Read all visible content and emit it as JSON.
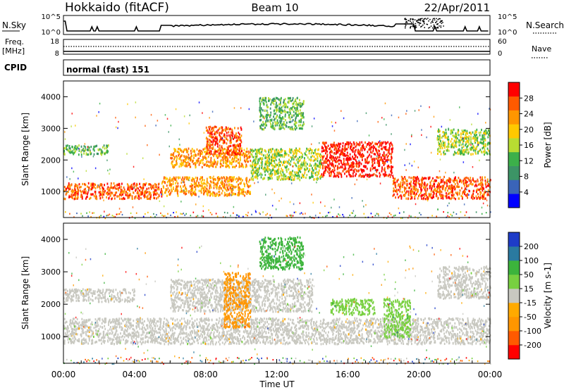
{
  "header": {
    "title": "Hokkaido (fitACF)",
    "beam": "Beam 10",
    "date": "22/Apr/2011"
  },
  "status_panel": {
    "nsky_label": "N.Sky",
    "nsky_ticks": [
      "10^5",
      "10^0"
    ],
    "nsearch_label": "N.Search",
    "freq_label": "Freq.",
    "freq_unit": "[MHz]",
    "freq_ticks": [
      "18",
      "8"
    ],
    "nave_ticks": [
      "60",
      "0"
    ],
    "nave_label": "Nave",
    "cpid_label": "CPID",
    "cpid_value": "normal (fast) 151"
  },
  "colors": {
    "power_scale": [
      "#0000ff",
      "#3a64b8",
      "#3c9466",
      "#3cb04a",
      "#b8dc32",
      "#ffc800",
      "#ff9600",
      "#ff5a00",
      "#ff0000"
    ],
    "velocity_scale": [
      "#ff0000",
      "#ff5a00",
      "#ff9600",
      "#ffaa00",
      "#c8c8c0",
      "#78d040",
      "#3cb43c",
      "#2a7aa0",
      "#1e3cc8"
    ],
    "ground_scatter": "#c0c0b8"
  },
  "chart_data": [
    {
      "type": "heatmap",
      "name": "power",
      "ylabel": "Slant Range [km]",
      "colorbar_label": "Power [dB]",
      "colorbar_ticks": [
        "28",
        "24",
        "20",
        "16",
        "12",
        "8",
        "4"
      ],
      "y_ticks": [
        "4000",
        "3000",
        "2000",
        "1000"
      ],
      "ylim": [
        180,
        4500
      ],
      "xlim": [
        "00:00",
        "24:00"
      ],
      "regions": [
        {
          "t0": 0.0,
          "t1": 5.5,
          "r0": 800,
          "r1": 1300,
          "level": 7
        },
        {
          "t0": 5.5,
          "t1": 10.5,
          "r0": 900,
          "r1": 1500,
          "level": 6
        },
        {
          "t0": 6.0,
          "t1": 10.5,
          "r0": 1800,
          "r1": 2400,
          "level": 6
        },
        {
          "t0": 8.0,
          "t1": 10.0,
          "r0": 2200,
          "r1": 3100,
          "level": 7
        },
        {
          "t0": 10.5,
          "t1": 14.5,
          "r0": 1400,
          "r1": 2400,
          "level": 4
        },
        {
          "t0": 14.5,
          "t1": 18.5,
          "r0": 1500,
          "r1": 2600,
          "level": 8
        },
        {
          "t0": 18.5,
          "t1": 24.0,
          "r0": 800,
          "r1": 1500,
          "level": 7
        },
        {
          "t0": 0.0,
          "t1": 2.5,
          "r0": 2200,
          "r1": 2500,
          "level": 3
        },
        {
          "t0": 21.0,
          "t1": 24.0,
          "r0": 2200,
          "r1": 3000,
          "level": 4
        },
        {
          "t0": 11.0,
          "t1": 13.5,
          "r0": 3000,
          "r1": 4000,
          "level": 3
        }
      ]
    },
    {
      "type": "heatmap",
      "name": "velocity",
      "ylabel": "Slant Range [km]",
      "colorbar_label": "Velocity [m s-1]",
      "colorbar_ticks": [
        "200",
        "100",
        "50",
        "15",
        "-15",
        "-50",
        "-100",
        "-200"
      ],
      "y_ticks": [
        "4000",
        "3000",
        "2000",
        "1000"
      ],
      "ylim": [
        180,
        4500
      ],
      "xlim": [
        "00:00",
        "24:00"
      ],
      "xlabel": "Time UT",
      "x_ticks": [
        "00:00",
        "04:00",
        "08:00",
        "12:00",
        "16:00",
        "20:00",
        "00:00"
      ],
      "regions": [
        {
          "t0": 0.0,
          "t1": 24.0,
          "r0": 800,
          "r1": 1600,
          "level": 4
        },
        {
          "t0": 0.0,
          "t1": 4.0,
          "r0": 2100,
          "r1": 2500,
          "level": 4
        },
        {
          "t0": 6.0,
          "t1": 14.0,
          "r0": 1800,
          "r1": 2800,
          "level": 4
        },
        {
          "t0": 15.0,
          "t1": 17.5,
          "r0": 1700,
          "r1": 2200,
          "level": 5
        },
        {
          "t0": 18.0,
          "t1": 19.5,
          "r0": 1000,
          "r1": 2200,
          "level": 5
        },
        {
          "t0": 9.0,
          "t1": 10.5,
          "r0": 1300,
          "r1": 3000,
          "level": 2
        },
        {
          "t0": 21.0,
          "t1": 24.0,
          "r0": 2200,
          "r1": 3200,
          "level": 4
        },
        {
          "t0": 11.0,
          "t1": 13.5,
          "r0": 3100,
          "r1": 4100,
          "level": 6
        }
      ]
    }
  ]
}
